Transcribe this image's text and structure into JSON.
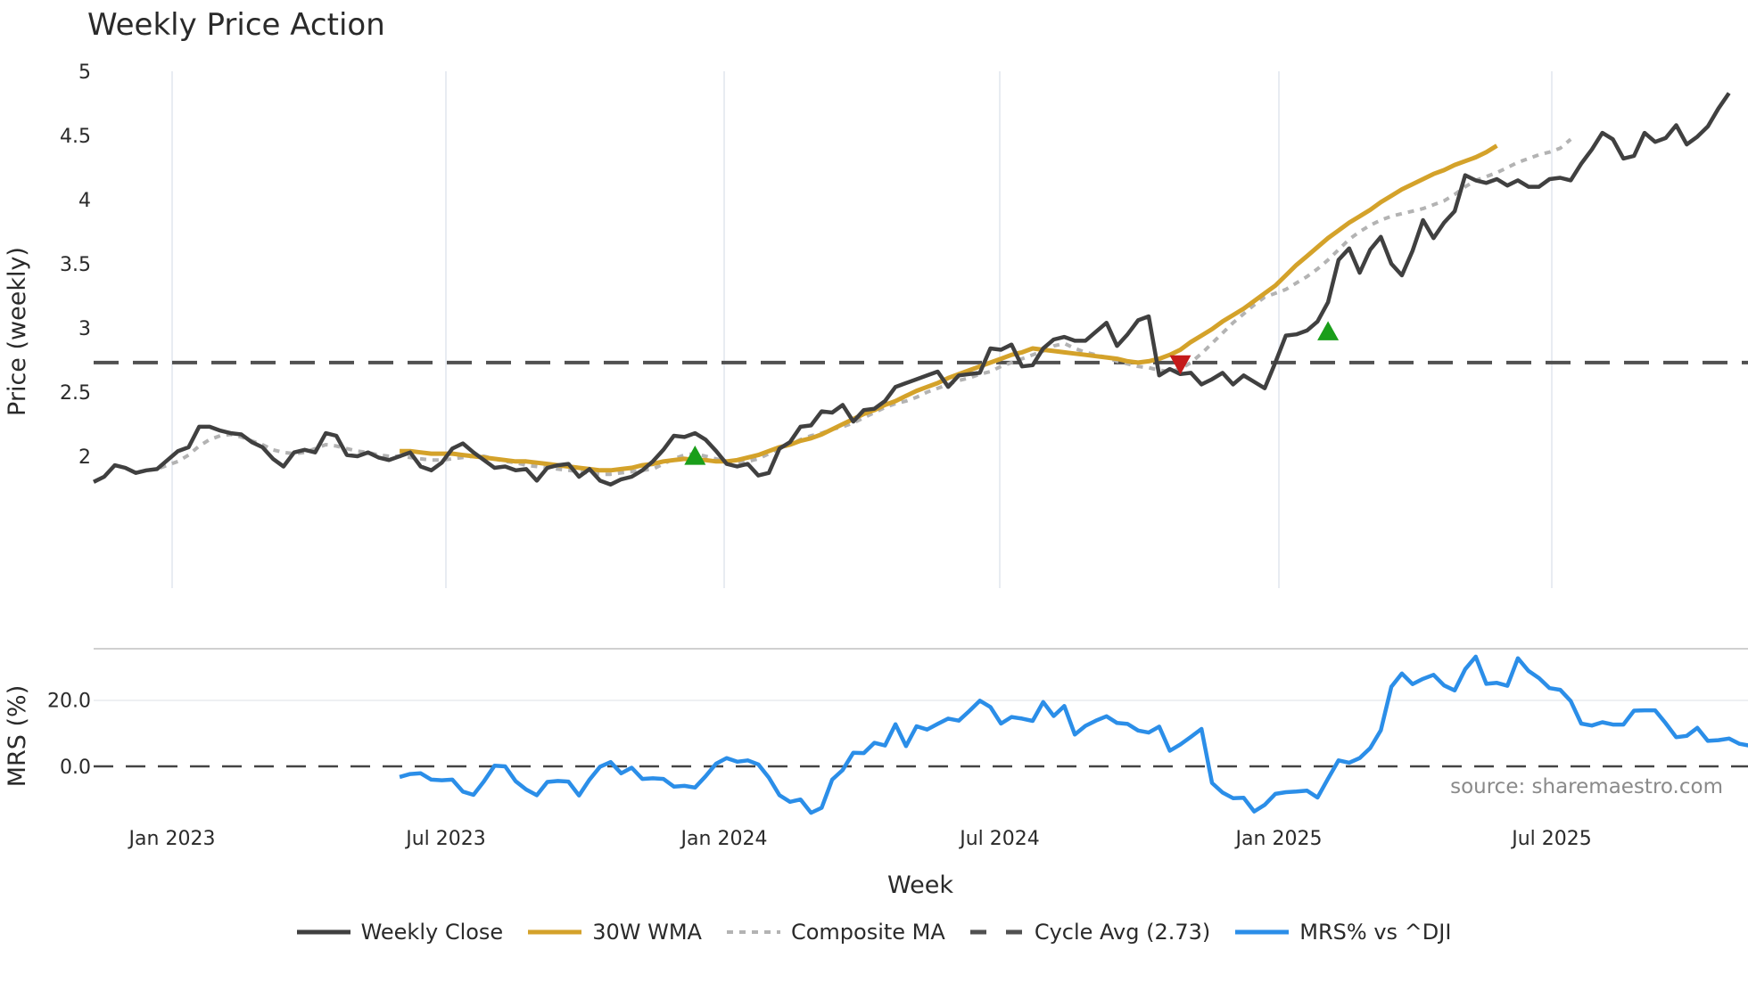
{
  "title": "Weekly Price Action",
  "legend": [
    {
      "label": "Weekly Close",
      "color": "#404040",
      "style": "solid"
    },
    {
      "label": "30W WMA",
      "color": "#d4a22a",
      "style": "solid"
    },
    {
      "label": "Composite MA",
      "color": "#b3b3b3",
      "style": "dotted"
    },
    {
      "label": "Cycle Avg (2.73)",
      "color": "#505050",
      "style": "dashed"
    },
    {
      "label": "MRS% vs ^DJI",
      "color": "#2b8ee8",
      "style": "solid"
    }
  ],
  "source": "source: sharemaestro.com",
  "chart_data": [
    {
      "type": "line",
      "title": "Weekly Price Action",
      "xlabel": "Week",
      "ylabel": "Price (weekly)",
      "ylim": [
        1.6,
        5.0
      ],
      "yticks": [
        "2",
        "2.5",
        "3",
        "3.5",
        "4",
        "4.5",
        "5"
      ],
      "xticks": [
        "Jan 2023",
        "Jul 2023",
        "Jan 2024",
        "Jul 2024",
        "Jan 2025",
        "Jul 2025"
      ],
      "grid": "vertical",
      "x_start": "2022-11-14",
      "x_step_weeks": 1,
      "series": [
        {
          "name": "Weekly Close",
          "color": "#404040",
          "offset": 0,
          "values": [
            1.8,
            1.84,
            1.93,
            1.91,
            1.87,
            1.89,
            1.9,
            1.97,
            2.04,
            2.07,
            2.23,
            2.23,
            2.2,
            2.18,
            2.17,
            2.11,
            2.07,
            1.98,
            1.92,
            2.03,
            2.05,
            2.03,
            2.18,
            2.16,
            2.01,
            2.0,
            2.03,
            1.99,
            1.97,
            2.0,
            2.03,
            1.92,
            1.89,
            1.95,
            2.06,
            2.1,
            2.03,
            1.97,
            1.91,
            1.92,
            1.89,
            1.9,
            1.81,
            1.91,
            1.93,
            1.94,
            1.84,
            1.9,
            1.81,
            1.78,
            1.82,
            1.84,
            1.89,
            1.96,
            2.05,
            2.16,
            2.15,
            2.18,
            2.13,
            2.04,
            1.94,
            1.92,
            1.94,
            1.85,
            1.87,
            2.06,
            2.11,
            2.23,
            2.24,
            2.35,
            2.34,
            2.4,
            2.27,
            2.36,
            2.37,
            2.43,
            2.54,
            2.57,
            2.6,
            2.63,
            2.66,
            2.54,
            2.63,
            2.64,
            2.65,
            2.84,
            2.83,
            2.87,
            2.7,
            2.71,
            2.84,
            2.91,
            2.93,
            2.9,
            2.9,
            2.97,
            3.04,
            2.86,
            2.95,
            3.06,
            3.09,
            2.63,
            2.68,
            2.64,
            2.65,
            2.56,
            2.6,
            2.65,
            2.56,
            2.63,
            2.58,
            2.53,
            2.73,
            2.94,
            2.95,
            2.98,
            3.05,
            3.2,
            3.53,
            3.62,
            3.43,
            3.61,
            3.71,
            3.5,
            3.41,
            3.6,
            3.84,
            3.7,
            3.82,
            3.91,
            4.19,
            4.15,
            4.13,
            4.16,
            4.11,
            4.15,
            4.1,
            4.1,
            4.16,
            4.17,
            4.15,
            4.28,
            4.39,
            4.52,
            4.47,
            4.32,
            4.34,
            4.52,
            4.45,
            4.48,
            4.58,
            4.43,
            4.49,
            4.57,
            4.71,
            4.83
          ]
        },
        {
          "name": "30W WMA",
          "color": "#d4a22a",
          "offset": 29,
          "values": [
            2.04,
            2.04,
            2.03,
            2.02,
            2.02,
            2.02,
            2.01,
            2.0,
            1.99,
            1.98,
            1.97,
            1.96,
            1.96,
            1.95,
            1.94,
            1.93,
            1.92,
            1.91,
            1.9,
            1.89,
            1.89,
            1.9,
            1.91,
            1.93,
            1.94,
            1.96,
            1.97,
            1.98,
            1.97,
            1.97,
            1.96,
            1.96,
            1.97,
            1.99,
            2.01,
            2.04,
            2.07,
            2.09,
            2.12,
            2.14,
            2.17,
            2.21,
            2.25,
            2.29,
            2.33,
            2.36,
            2.4,
            2.43,
            2.47,
            2.51,
            2.54,
            2.57,
            2.61,
            2.64,
            2.67,
            2.7,
            2.73,
            2.76,
            2.79,
            2.81,
            2.84,
            2.83,
            2.82,
            2.81,
            2.8,
            2.79,
            2.78,
            2.77,
            2.76,
            2.74,
            2.73,
            2.74,
            2.76,
            2.79,
            2.83,
            2.89,
            2.94,
            2.99,
            3.05,
            3.1,
            3.15,
            3.21,
            3.27,
            3.33,
            3.41,
            3.49,
            3.56,
            3.63,
            3.7,
            3.76,
            3.82,
            3.87,
            3.92,
            3.98,
            4.03,
            4.08,
            4.12,
            4.16,
            4.2,
            4.23,
            4.27,
            4.3,
            4.33,
            4.37,
            4.42
          ]
        },
        {
          "name": "Composite MA",
          "color": "#b3b3b3",
          "offset": 4,
          "values": [
            1.87,
            1.89,
            1.9,
            1.93,
            1.96,
            2.01,
            2.08,
            2.13,
            2.16,
            2.17,
            2.15,
            2.12,
            2.09,
            2.05,
            2.03,
            2.02,
            2.03,
            2.06,
            2.09,
            2.08,
            2.06,
            2.04,
            2.03,
            2.01,
            2.0,
            2.0,
            1.99,
            1.98,
            1.97,
            1.97,
            1.98,
            1.99,
            2.0,
            2.0,
            1.98,
            1.96,
            1.95,
            1.93,
            1.92,
            1.91,
            1.9,
            1.89,
            1.88,
            1.87,
            1.86,
            1.86,
            1.87,
            1.88,
            1.89,
            1.9,
            1.94,
            1.98,
            2.01,
            2.02,
            2.0,
            1.98,
            1.96,
            1.95,
            1.96,
            1.98,
            2.02,
            2.06,
            2.09,
            2.13,
            2.16,
            2.18,
            2.21,
            2.23,
            2.26,
            2.3,
            2.34,
            2.38,
            2.41,
            2.43,
            2.46,
            2.5,
            2.53,
            2.56,
            2.59,
            2.61,
            2.64,
            2.66,
            2.7,
            2.73,
            2.76,
            2.79,
            2.82,
            2.86,
            2.88,
            2.84,
            2.81,
            2.79,
            2.77,
            2.74,
            2.72,
            2.7,
            2.69,
            2.67,
            2.66,
            2.68,
            2.73,
            2.8,
            2.88,
            2.96,
            3.04,
            3.11,
            3.18,
            3.24,
            3.27,
            3.3,
            3.35,
            3.4,
            3.46,
            3.53,
            3.61,
            3.69,
            3.75,
            3.8,
            3.84,
            3.87,
            3.89,
            3.91,
            3.93,
            3.96,
            3.99,
            4.04,
            4.1,
            4.15,
            4.18,
            4.21,
            4.25,
            4.29,
            4.32,
            4.35,
            4.37,
            4.4,
            4.47
          ]
        },
        {
          "name": "Cycle Avg (2.73)",
          "color": "#505050",
          "constant": 2.73
        }
      ],
      "markers": [
        {
          "type": "buy",
          "shape": "triangle-up",
          "color": "#1a9e1a",
          "week": 57,
          "value": 2.0
        },
        {
          "type": "sell",
          "shape": "triangle-down",
          "color": "#c41a1a",
          "week": 103,
          "value": 2.72
        },
        {
          "type": "buy",
          "shape": "triangle-up",
          "color": "#1a9e1a",
          "week": 117,
          "value": 2.97
        }
      ]
    },
    {
      "type": "line",
      "title": "",
      "xlabel": "Week",
      "ylabel": "MRS (%)",
      "ylim": [
        -16,
        36
      ],
      "yticks": [
        "0.0",
        "20.0"
      ],
      "reference_line": 0,
      "series": [
        {
          "name": "MRS% vs ^DJI",
          "color": "#2b8ee8",
          "offset": 29,
          "values": [
            -3.2,
            -2.3,
            -2.1,
            -4.0,
            -4.2,
            -4.0,
            -7.6,
            -8.6,
            -4.5,
            0.2,
            0.0,
            -4.5,
            -7.0,
            -8.7,
            -4.7,
            -4.4,
            -4.6,
            -8.8,
            -4.0,
            -0.1,
            1.3,
            -2.1,
            -0.4,
            -3.8,
            -3.6,
            -3.8,
            -6.1,
            -5.9,
            -6.4,
            -3.0,
            0.8,
            2.5,
            1.4,
            1.8,
            0.6,
            -3.4,
            -8.7,
            -10.7,
            -10.0,
            -14.0,
            -12.5,
            -4.0,
            -1.1,
            4.1,
            4.0,
            7.1,
            6.3,
            12.7,
            6.1,
            12.1,
            11.1,
            12.8,
            14.4,
            13.8,
            16.7,
            19.8,
            17.9,
            12.9,
            14.9,
            14.4,
            13.7,
            19.4,
            15.2,
            18.2,
            9.6,
            12.2,
            13.8,
            15.1,
            13.1,
            12.8,
            10.8,
            10.2,
            12.0,
            4.7,
            6.6,
            8.9,
            11.3,
            -5.0,
            -7.9,
            -9.6,
            -9.5,
            -13.6,
            -11.6,
            -8.3,
            -7.8,
            -7.6,
            -7.3,
            -9.4,
            -3.7,
            1.8,
            1.1,
            2.5,
            5.5,
            10.9,
            24.0,
            28.0,
            24.8,
            26.4,
            27.6,
            24.4,
            22.9,
            29.3,
            33.1,
            24.9,
            25.2,
            24.3,
            32.6,
            28.8,
            26.6,
            23.6,
            23.1,
            19.7,
            12.9,
            12.3,
            13.3,
            12.6,
            12.6,
            16.8,
            16.9,
            16.9,
            13.0,
            8.8,
            9.2,
            11.6,
            7.7,
            7.9,
            8.4,
            6.8,
            6.2,
            5.6,
            7.5,
            10.4
          ]
        }
      ]
    }
  ]
}
